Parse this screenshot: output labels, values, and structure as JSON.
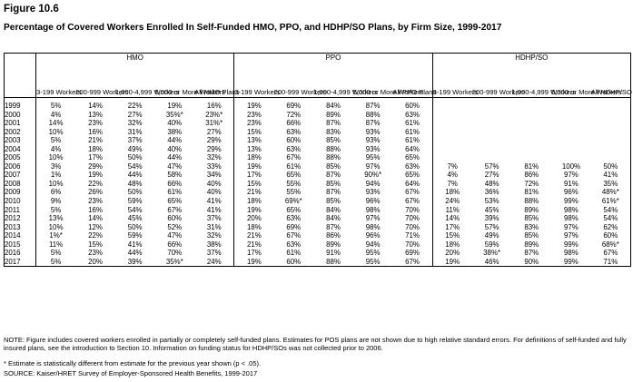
{
  "figure": {
    "label": "Figure 10.6",
    "title": "Percentage of Covered Workers Enrolled In Self-Funded HMO, PPO, and HDHP/SO Plans, by Firm Size, 1999-2017"
  },
  "table": {
    "groups": [
      "HMO",
      "PPO",
      "HDHP/SO"
    ],
    "subheaders": [
      [
        "3-199 Workers",
        "200-999 Workers",
        "1,000-4,999 Workers",
        "5,000 or More Workers",
        "All HMO Plans"
      ],
      [
        "3-199 Workers",
        "200-999 Workers",
        "1,000-4,999 Workers",
        "5,000 or More Workers",
        "All PPO Plans"
      ],
      [
        "3-199 Workers",
        "200-999 Workers",
        "1,000-4,999 Workers",
        "5,000 or More Workers",
        "All HDHP/SO Plans"
      ]
    ],
    "rows": [
      {
        "year": "1999",
        "hmo": [
          "5%",
          "14%",
          "22%",
          "19%",
          "16%"
        ],
        "ppo": [
          "19%",
          "69%",
          "84%",
          "87%",
          "60%"
        ],
        "hdhp": [
          "",
          "",
          "",
          "",
          ""
        ]
      },
      {
        "year": "2000",
        "hmo": [
          "4%",
          "13%",
          "27%",
          "35%*",
          "23%*"
        ],
        "ppo": [
          "23%",
          "72%",
          "89%",
          "88%",
          "63%"
        ],
        "hdhp": [
          "",
          "",
          "",
          "",
          ""
        ]
      },
      {
        "year": "2001",
        "hmo": [
          "14%",
          "23%",
          "32%",
          "40%",
          "31%*"
        ],
        "ppo": [
          "23%",
          "66%",
          "87%",
          "87%",
          "61%"
        ],
        "hdhp": [
          "",
          "",
          "",
          "",
          ""
        ]
      },
      {
        "year": "2002",
        "hmo": [
          "10%",
          "16%",
          "31%",
          "38%",
          "27%"
        ],
        "ppo": [
          "15%",
          "63%",
          "83%",
          "93%",
          "61%"
        ],
        "hdhp": [
          "",
          "",
          "",
          "",
          ""
        ]
      },
      {
        "year": "2003",
        "hmo": [
          "5%",
          "21%",
          "37%",
          "44%",
          "29%"
        ],
        "ppo": [
          "13%",
          "60%",
          "85%",
          "93%",
          "61%"
        ],
        "hdhp": [
          "",
          "",
          "",
          "",
          ""
        ]
      },
      {
        "year": "2004",
        "hmo": [
          "4%",
          "18%",
          "49%",
          "40%",
          "29%"
        ],
        "ppo": [
          "13%",
          "63%",
          "88%",
          "93%",
          "64%"
        ],
        "hdhp": [
          "",
          "",
          "",
          "",
          ""
        ]
      },
      {
        "year": "2005",
        "hmo": [
          "10%",
          "17%",
          "50%",
          "44%",
          "32%"
        ],
        "ppo": [
          "18%",
          "67%",
          "88%",
          "95%",
          "65%"
        ],
        "hdhp": [
          "",
          "",
          "",
          "",
          ""
        ]
      },
      {
        "year": "2006",
        "hmo": [
          "3%",
          "29%",
          "54%",
          "47%",
          "33%"
        ],
        "ppo": [
          "19%",
          "61%",
          "85%",
          "97%",
          "63%"
        ],
        "hdhp": [
          "7%",
          "57%",
          "81%",
          "100%",
          "50%"
        ]
      },
      {
        "year": "2007",
        "hmo": [
          "1%",
          "19%",
          "44%",
          "58%",
          "34%"
        ],
        "ppo": [
          "17%",
          "65%",
          "87%",
          "90%*",
          "65%"
        ],
        "hdhp": [
          "4%",
          "27%",
          "86%",
          "97%",
          "41%"
        ]
      },
      {
        "year": "2008",
        "hmo": [
          "10%",
          "22%",
          "48%",
          "66%",
          "40%"
        ],
        "ppo": [
          "15%",
          "55%",
          "85%",
          "94%",
          "64%"
        ],
        "hdhp": [
          "7%",
          "48%",
          "72%",
          "91%",
          "35%"
        ]
      },
      {
        "year": "2009",
        "hmo": [
          "6%",
          "26%",
          "50%",
          "61%",
          "40%"
        ],
        "ppo": [
          "21%",
          "55%",
          "87%",
          "93%",
          "67%"
        ],
        "hdhp": [
          "18%",
          "36%",
          "81%",
          "96%",
          "48%*"
        ]
      },
      {
        "year": "2010",
        "hmo": [
          "9%",
          "23%",
          "59%",
          "65%",
          "41%"
        ],
        "ppo": [
          "18%",
          "69%*",
          "85%",
          "96%",
          "67%"
        ],
        "hdhp": [
          "24%",
          "53%",
          "88%",
          "99%",
          "61%*"
        ]
      },
      {
        "year": "2011",
        "hmo": [
          "5%",
          "16%",
          "54%",
          "67%",
          "41%"
        ],
        "ppo": [
          "19%",
          "65%",
          "84%",
          "98%",
          "70%"
        ],
        "hdhp": [
          "11%",
          "45%",
          "89%",
          "98%",
          "54%"
        ]
      },
      {
        "year": "2012",
        "hmo": [
          "13%",
          "14%",
          "45%",
          "60%",
          "37%"
        ],
        "ppo": [
          "20%",
          "63%",
          "84%",
          "97%",
          "70%"
        ],
        "hdhp": [
          "14%",
          "39%",
          "85%",
          "98%",
          "54%"
        ]
      },
      {
        "year": "2013",
        "hmo": [
          "10%",
          "12%",
          "50%",
          "52%",
          "31%"
        ],
        "ppo": [
          "18%",
          "69%",
          "87%",
          "98%",
          "70%"
        ],
        "hdhp": [
          "17%",
          "57%",
          "83%",
          "97%",
          "62%"
        ]
      },
      {
        "year": "2014",
        "hmo": [
          "1%*",
          "22%",
          "59%",
          "47%",
          "32%"
        ],
        "ppo": [
          "21%",
          "67%",
          "86%",
          "96%",
          "71%"
        ],
        "hdhp": [
          "15%",
          "49%",
          "85%",
          "97%",
          "60%"
        ]
      },
      {
        "year": "2015",
        "hmo": [
          "11%",
          "15%",
          "41%",
          "66%",
          "38%"
        ],
        "ppo": [
          "21%",
          "63%",
          "89%",
          "94%",
          "70%"
        ],
        "hdhp": [
          "18%",
          "59%",
          "89%",
          "99%",
          "68%*"
        ]
      },
      {
        "year": "2016",
        "hmo": [
          "5%",
          "23%",
          "44%",
          "70%",
          "37%"
        ],
        "ppo": [
          "17%",
          "61%",
          "91%",
          "95%",
          "69%"
        ],
        "hdhp": [
          "20%",
          "38%*",
          "87%",
          "98%",
          "67%"
        ]
      },
      {
        "year": "2017",
        "hmo": [
          "5%",
          "20%",
          "39%",
          "35%*",
          "24%"
        ],
        "ppo": [
          "19%",
          "60%",
          "88%",
          "95%",
          "67%"
        ],
        "hdhp": [
          "19%",
          "46%",
          "90%",
          "99%",
          "71%"
        ]
      }
    ]
  },
  "notes": {
    "note": "NOTE: Figure includes covered workers enrolled in partially or completely self-funded plans. Estimates for POS plans are not shown due to high relative standard errors. For definitions of self-funded and fully insured plans, see the introduction to Section 10. Information on funding status for HDHP/SOs was not collected prior to 2006.",
    "significance": "* Estimate is statistically different from estimate for the previous year shown (p < .05).",
    "source": "SOURCE: Kaiser/HRET Survey of Employer-Sponsored Health Benefits, 1999-2017"
  }
}
